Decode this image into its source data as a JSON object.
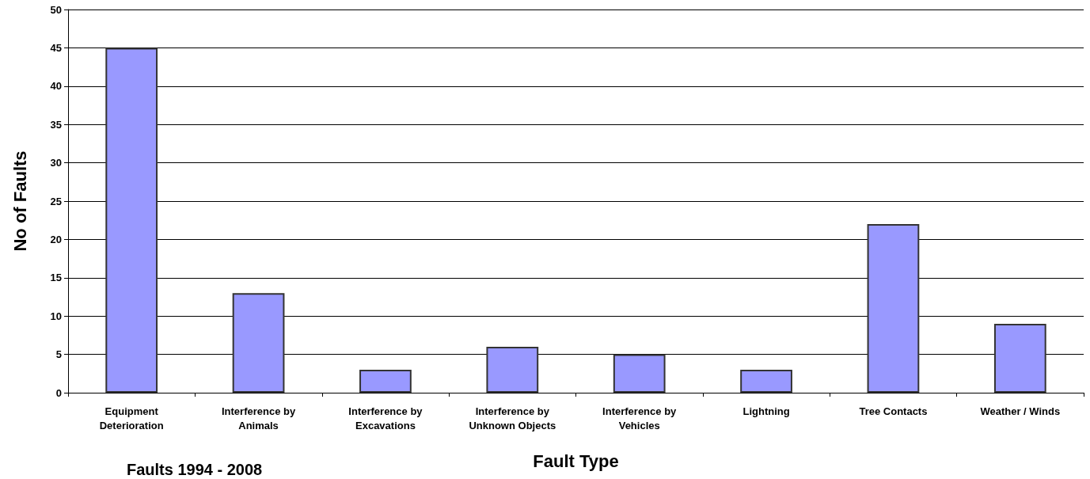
{
  "chart_data": {
    "type": "bar",
    "xlabel": "Fault Type",
    "ylabel": "No of Faults",
    "categories": [
      "Equipment Deterioration",
      "Interference by Animals",
      "Interference by Excavations",
      "Interference by Unknown Objects",
      "Interference by Vehicles",
      "Lightning",
      "Tree Contacts",
      "Weather / Winds"
    ],
    "values": [
      45,
      13,
      3,
      6,
      5,
      3,
      22,
      9
    ],
    "color": "#9999ff",
    "ylim": [
      0,
      50
    ],
    "yticks": [
      0,
      5,
      10,
      15,
      20,
      25,
      30,
      35,
      40,
      45,
      50
    ],
    "grid": "y",
    "annotations": [
      "Faults 1994 - 2008"
    ]
  }
}
